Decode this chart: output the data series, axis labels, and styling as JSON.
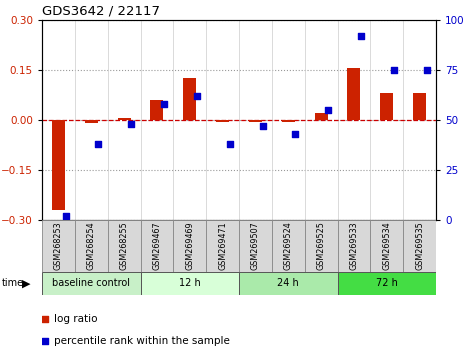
{
  "title": "GDS3642 / 22117",
  "samples": [
    "GSM268253",
    "GSM268254",
    "GSM268255",
    "GSM269467",
    "GSM269469",
    "GSM269471",
    "GSM269507",
    "GSM269524",
    "GSM269525",
    "GSM269533",
    "GSM269534",
    "GSM269535"
  ],
  "log_ratio": [
    -0.27,
    -0.01,
    0.005,
    0.06,
    0.125,
    -0.005,
    -0.005,
    -0.005,
    0.02,
    0.155,
    0.08,
    0.08
  ],
  "percentile_rank": [
    2,
    38,
    48,
    58,
    62,
    38,
    47,
    43,
    55,
    92,
    75,
    75
  ],
  "groups": [
    {
      "label": "baseline control",
      "start": 0,
      "end": 3
    },
    {
      "label": "12 h",
      "start": 3,
      "end": 6
    },
    {
      "label": "24 h",
      "start": 6,
      "end": 9
    },
    {
      "label": "72 h",
      "start": 9,
      "end": 12
    }
  ],
  "group_colors": [
    "#c8f0c8",
    "#d8ffd8",
    "#aaeaaa",
    "#44dd44"
  ],
  "ylim_left": [
    -0.3,
    0.3
  ],
  "ylim_right": [
    0,
    100
  ],
  "yticks_left": [
    -0.3,
    -0.15,
    0.0,
    0.15,
    0.3
  ],
  "yticks_right": [
    0,
    25,
    50,
    75,
    100
  ],
  "bar_color": "#cc2200",
  "dot_color": "#0000cc",
  "zero_line_color": "#cc0000",
  "hline_color": "#999999",
  "vline_color": "#cccccc",
  "sample_bg_color": "#d8d8d8",
  "sample_border_color": "#888888"
}
